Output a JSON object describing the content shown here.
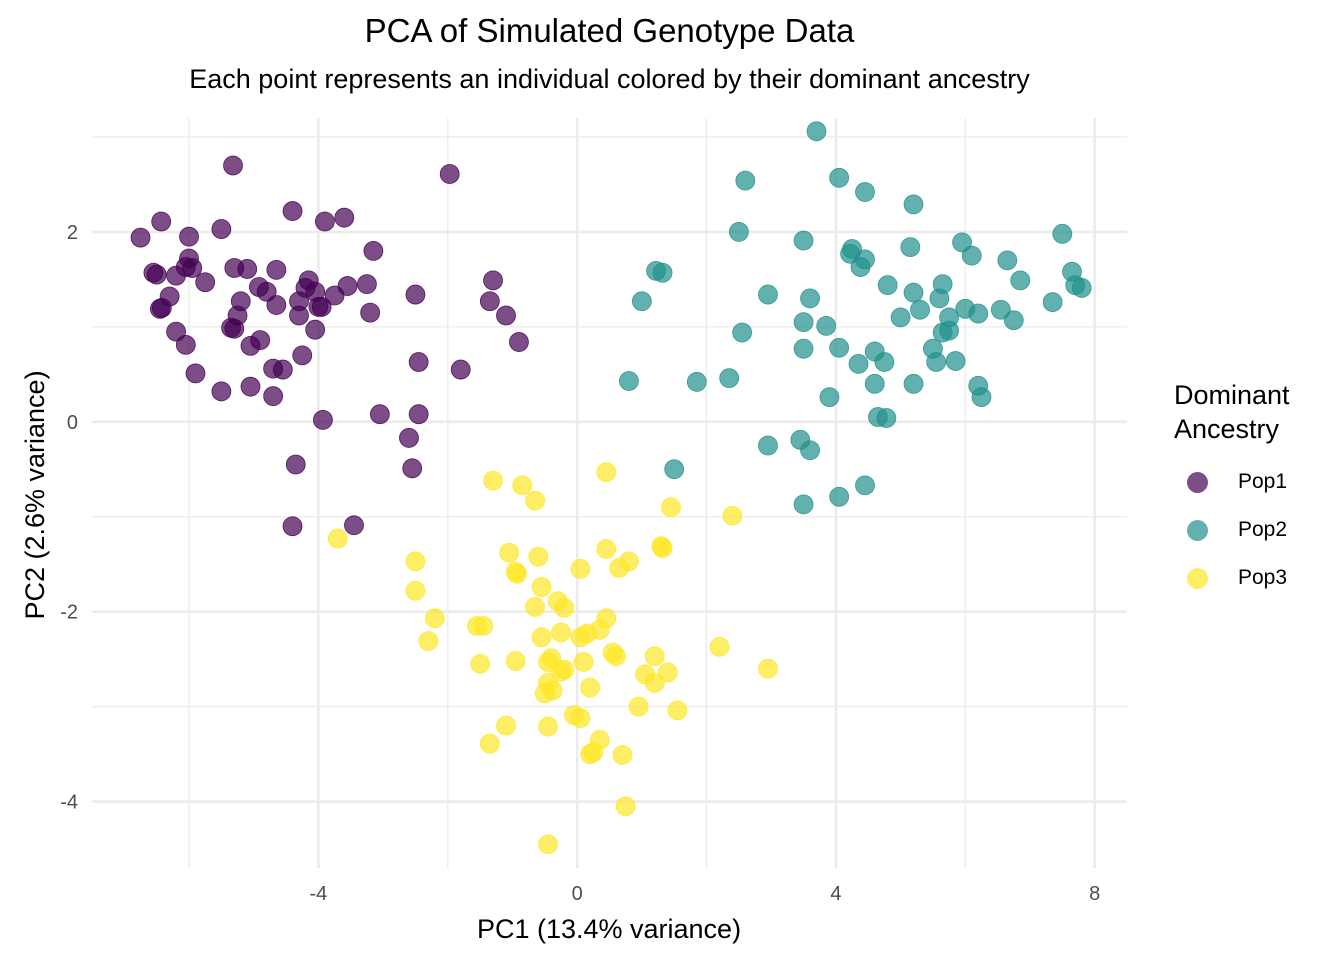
{
  "chart_data": {
    "type": "scatter",
    "title": "PCA of Simulated Genotype Data",
    "subtitle": "Each point represents an individual colored by their dominant ancestry",
    "xlabel": "PC1 (13.4% variance)",
    "ylabel": "PC2 (2.6% variance)",
    "xlim": [
      -7.5,
      8.5
    ],
    "ylim": [
      -4.7,
      3.2
    ],
    "x_ticks": [
      -4,
      0,
      4,
      8
    ],
    "x_tick_labels": [
      "-4",
      "0",
      "4",
      "8"
    ],
    "y_ticks": [
      -4,
      -2,
      0,
      2
    ],
    "y_tick_labels": [
      "-4",
      "-2",
      "0",
      "2"
    ],
    "grid": true,
    "legend_title": "Dominant\nAncestry",
    "legend_position": "right",
    "series": [
      {
        "name": "Pop1",
        "color": "#440154",
        "points": [
          [
            -6.75,
            1.94
          ],
          [
            -6.43,
            2.11
          ],
          [
            -6.0,
            1.95
          ],
          [
            -5.5,
            2.03
          ],
          [
            -5.32,
            2.7
          ],
          [
            -4.4,
            2.22
          ],
          [
            -3.9,
            2.11
          ],
          [
            -3.6,
            2.15
          ],
          [
            -1.97,
            2.61
          ],
          [
            -6.55,
            1.57
          ],
          [
            -6.5,
            1.55
          ],
          [
            -6.2,
            1.54
          ],
          [
            -6.0,
            1.72
          ],
          [
            -5.95,
            1.62
          ],
          [
            -6.05,
            1.63
          ],
          [
            -5.75,
            1.47
          ],
          [
            -5.3,
            1.62
          ],
          [
            -5.1,
            1.61
          ],
          [
            -4.65,
            1.6
          ],
          [
            -3.15,
            1.8
          ],
          [
            -6.3,
            1.32
          ],
          [
            -6.45,
            1.19
          ],
          [
            -6.42,
            1.2
          ],
          [
            -5.2,
            1.27
          ],
          [
            -4.92,
            1.42
          ],
          [
            -4.8,
            1.37
          ],
          [
            -4.65,
            1.23
          ],
          [
            -4.2,
            1.41
          ],
          [
            -4.15,
            1.49
          ],
          [
            -4.05,
            1.37
          ],
          [
            -4.3,
            1.27
          ],
          [
            -4.0,
            1.21
          ],
          [
            -3.95,
            1.21
          ],
          [
            -3.75,
            1.33
          ],
          [
            -3.55,
            1.43
          ],
          [
            -3.25,
            1.45
          ],
          [
            -2.5,
            1.34
          ],
          [
            -1.35,
            1.27
          ],
          [
            -1.3,
            1.49
          ],
          [
            -1.1,
            1.12
          ],
          [
            -6.2,
            0.95
          ],
          [
            -6.05,
            0.81
          ],
          [
            -5.35,
            0.99
          ],
          [
            -5.3,
            0.98
          ],
          [
            -5.25,
            1.12
          ],
          [
            -5.05,
            0.8
          ],
          [
            -4.9,
            0.86
          ],
          [
            -4.3,
            1.12
          ],
          [
            -4.05,
            0.97
          ],
          [
            -3.2,
            1.15
          ],
          [
            -0.9,
            0.84
          ],
          [
            -5.9,
            0.51
          ],
          [
            -5.5,
            0.32
          ],
          [
            -5.05,
            0.37
          ],
          [
            -4.7,
            0.56
          ],
          [
            -4.55,
            0.55
          ],
          [
            -4.7,
            0.27
          ],
          [
            -4.25,
            0.7
          ],
          [
            -2.45,
            0.63
          ],
          [
            -1.8,
            0.55
          ],
          [
            -3.05,
            0.08
          ],
          [
            -2.45,
            0.08
          ],
          [
            -3.93,
            0.02
          ],
          [
            -2.6,
            -0.17
          ],
          [
            -4.35,
            -0.45
          ],
          [
            -2.55,
            -0.49
          ],
          [
            -4.4,
            -1.1
          ],
          [
            -3.45,
            -1.09
          ]
        ]
      },
      {
        "name": "Pop2",
        "color": "#21908C",
        "points": [
          [
            3.7,
            3.06
          ],
          [
            2.6,
            2.54
          ],
          [
            4.05,
            2.57
          ],
          [
            4.45,
            2.42
          ],
          [
            5.2,
            2.29
          ],
          [
            2.5,
            2.0
          ],
          [
            3.5,
            1.91
          ],
          [
            4.25,
            1.82
          ],
          [
            4.22,
            1.77
          ],
          [
            4.38,
            1.63
          ],
          [
            4.45,
            1.71
          ],
          [
            5.15,
            1.84
          ],
          [
            5.95,
            1.89
          ],
          [
            6.1,
            1.75
          ],
          [
            6.65,
            1.7
          ],
          [
            7.5,
            1.98
          ],
          [
            7.65,
            1.58
          ],
          [
            7.7,
            1.44
          ],
          [
            7.8,
            1.41
          ],
          [
            1.22,
            1.59
          ],
          [
            1.32,
            1.57
          ],
          [
            1.0,
            1.27
          ],
          [
            2.95,
            1.34
          ],
          [
            3.6,
            1.3
          ],
          [
            4.8,
            1.44
          ],
          [
            5.2,
            1.36
          ],
          [
            5.3,
            1.18
          ],
          [
            5.6,
            1.3
          ],
          [
            5.65,
            1.45
          ],
          [
            5.75,
            1.1
          ],
          [
            6.0,
            1.19
          ],
          [
            6.2,
            1.14
          ],
          [
            6.55,
            1.18
          ],
          [
            6.85,
            1.49
          ],
          [
            7.35,
            1.26
          ],
          [
            6.75,
            1.07
          ],
          [
            3.5,
            1.05
          ],
          [
            3.85,
            1.01
          ],
          [
            5.0,
            1.1
          ],
          [
            5.65,
            0.94
          ],
          [
            5.75,
            0.96
          ],
          [
            2.55,
            0.94
          ],
          [
            3.5,
            0.77
          ],
          [
            4.05,
            0.78
          ],
          [
            4.35,
            0.61
          ],
          [
            4.6,
            0.74
          ],
          [
            4.75,
            0.63
          ],
          [
            5.5,
            0.77
          ],
          [
            5.55,
            0.63
          ],
          [
            5.85,
            0.64
          ],
          [
            0.8,
            0.43
          ],
          [
            1.85,
            0.42
          ],
          [
            2.35,
            0.46
          ],
          [
            4.6,
            0.4
          ],
          [
            5.2,
            0.4
          ],
          [
            6.2,
            0.38
          ],
          [
            3.9,
            0.26
          ],
          [
            6.25,
            0.26
          ],
          [
            4.65,
            0.05
          ],
          [
            4.78,
            0.04
          ],
          [
            3.45,
            -0.19
          ],
          [
            2.95,
            -0.25
          ],
          [
            3.6,
            -0.3
          ],
          [
            1.5,
            -0.5
          ],
          [
            4.45,
            -0.67
          ],
          [
            4.05,
            -0.79
          ],
          [
            3.5,
            -0.87
          ]
        ]
      },
      {
        "name": "Pop3",
        "color": "#FDE725",
        "points": [
          [
            0.45,
            -0.53
          ],
          [
            -1.3,
            -0.62
          ],
          [
            -0.85,
            -0.67
          ],
          [
            -0.65,
            -0.83
          ],
          [
            1.45,
            -0.9
          ],
          [
            2.4,
            -0.99
          ],
          [
            -3.7,
            -1.23
          ],
          [
            -2.5,
            -1.47
          ],
          [
            -1.05,
            -1.38
          ],
          [
            -0.6,
            -1.42
          ],
          [
            0.45,
            -1.34
          ],
          [
            1.3,
            -1.31
          ],
          [
            1.32,
            -1.33
          ],
          [
            0.8,
            -1.47
          ],
          [
            0.65,
            -1.54
          ],
          [
            0.05,
            -1.55
          ],
          [
            -0.95,
            -1.58
          ],
          [
            -0.93,
            -1.6
          ],
          [
            -0.55,
            -1.74
          ],
          [
            -2.5,
            -1.78
          ],
          [
            -0.3,
            -1.89
          ],
          [
            -0.65,
            -1.95
          ],
          [
            -0.2,
            -1.96
          ],
          [
            0.45,
            -2.07
          ],
          [
            -2.2,
            -2.07
          ],
          [
            -1.55,
            -2.15
          ],
          [
            -1.45,
            -2.15
          ],
          [
            0.35,
            -2.19
          ],
          [
            -0.25,
            -2.22
          ],
          [
            0.15,
            -2.23
          ],
          [
            -0.55,
            -2.27
          ],
          [
            0.05,
            -2.27
          ],
          [
            -2.3,
            -2.31
          ],
          [
            2.2,
            -2.37
          ],
          [
            0.55,
            -2.43
          ],
          [
            0.6,
            -2.47
          ],
          [
            1.2,
            -2.47
          ],
          [
            -0.4,
            -2.49
          ],
          [
            -0.45,
            -2.53
          ],
          [
            0.1,
            -2.53
          ],
          [
            -0.95,
            -2.52
          ],
          [
            -1.5,
            -2.55
          ],
          [
            -0.2,
            -2.61
          ],
          [
            -0.25,
            -2.63
          ],
          [
            2.95,
            -2.6
          ],
          [
            1.05,
            -2.66
          ],
          [
            1.4,
            -2.64
          ],
          [
            1.2,
            -2.75
          ],
          [
            -0.45,
            -2.75
          ],
          [
            -0.5,
            -2.86
          ],
          [
            -0.38,
            -2.83
          ],
          [
            0.2,
            -2.8
          ],
          [
            0.95,
            -3.0
          ],
          [
            1.55,
            -3.04
          ],
          [
            -0.05,
            -3.09
          ],
          [
            0.05,
            -3.12
          ],
          [
            -1.1,
            -3.2
          ],
          [
            -0.45,
            -3.21
          ],
          [
            0.35,
            -3.35
          ],
          [
            -1.35,
            -3.39
          ],
          [
            0.25,
            -3.48
          ],
          [
            0.2,
            -3.5
          ],
          [
            0.7,
            -3.51
          ],
          [
            0.75,
            -4.05
          ],
          [
            -0.45,
            -4.45
          ]
        ]
      }
    ]
  }
}
